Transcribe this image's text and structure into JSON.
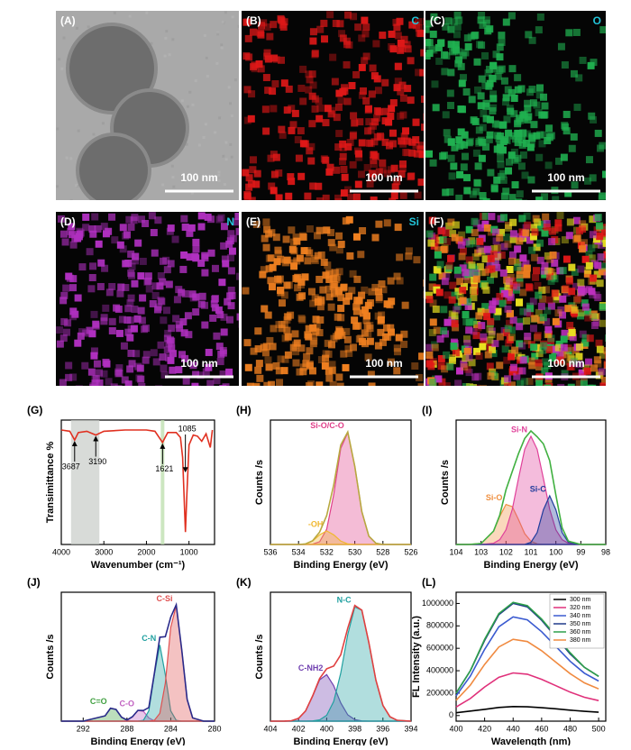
{
  "panels": [
    {
      "label": "(A)",
      "scale_bar": "100 nm"
    },
    {
      "label": "(B)",
      "element": "C",
      "scale_bar": "100 nm"
    },
    {
      "label": "(C)",
      "element": "O",
      "scale_bar": "100 nm"
    },
    {
      "label": "(D)",
      "element": "N",
      "scale_bar": "100 nm"
    },
    {
      "label": "(E)",
      "element": "Si",
      "scale_bar": "100 nm"
    },
    {
      "label": "(F)",
      "scale_bar": "100 nm"
    }
  ],
  "chart_data": [
    {
      "type": "line",
      "panel_label": "(G)",
      "x_label": "Wavenumber (cm⁻¹)",
      "y_label": "Transimittance %",
      "x": [
        4000,
        3800,
        3687,
        3600,
        3400,
        3190,
        3000,
        2500,
        2000,
        1800,
        1621,
        1500,
        1300,
        1200,
        1150,
        1085,
        1050,
        1000,
        900,
        800,
        700,
        600,
        500,
        450
      ],
      "series": [
        {
          "color": "#e03020",
          "values": [
            92,
            91,
            84,
            90,
            91,
            88,
            91,
            92,
            92,
            91,
            82,
            90,
            90,
            86,
            70,
            10,
            40,
            80,
            88,
            87,
            83,
            89,
            78,
            92
          ]
        }
      ],
      "xlim": [
        4000,
        400
      ],
      "xticks": [
        4000,
        3000,
        2000,
        1000
      ],
      "ylim": [
        0,
        100
      ],
      "annotations": [
        3687,
        3190,
        1621,
        1085
      ]
    },
    {
      "type": "peaks",
      "panel_label": "(H)",
      "x_label": "Binding Energy (eV)",
      "y_label": "Counts /s",
      "x": [
        536,
        535,
        534,
        533.5,
        533,
        532.5,
        532,
        531.5,
        531,
        530.5,
        530,
        529.5,
        529,
        528.5,
        528,
        527,
        526
      ],
      "series": [
        {
          "color": "#e0408a",
          "filled": true,
          "name": "Si-O/C-O",
          "values": [
            0,
            0,
            0,
            0,
            0.3,
            2.5,
            13.5,
            44,
            85,
            99,
            69,
            29,
            7.3,
            1.1,
            0,
            0,
            0
          ]
        },
        {
          "color": "#f0b830",
          "filled": true,
          "name": "-OH",
          "values": [
            0,
            0,
            0,
            0.5,
            3,
            8.5,
            12,
            8.5,
            3,
            0.5,
            0,
            0,
            0,
            0,
            0,
            0,
            0
          ]
        },
        {
          "color": "#b8a840",
          "filled": false,
          "values": [
            0,
            0,
            0,
            0.5,
            3.3,
            11,
            25.5,
            52.5,
            88,
            99.5,
            69,
            29,
            7.3,
            1.1,
            0,
            0,
            0
          ]
        }
      ],
      "xlim": [
        536,
        526
      ],
      "xticks": [
        536,
        534,
        532,
        530,
        528,
        526
      ],
      "ylim": [
        0,
        110
      ]
    },
    {
      "type": "peaks",
      "panel_label": "(I)",
      "x_label": "Binding Energy (eV)",
      "y_label": "Counts /s",
      "x": [
        104,
        103.5,
        103,
        102.5,
        102.25,
        102,
        101.75,
        101.5,
        101.25,
        101,
        100.75,
        100.5,
        100.25,
        100,
        99.75,
        99.5,
        99,
        98.5,
        98
      ],
      "series": [
        {
          "color": "#f09040",
          "filled": true,
          "name": "Si-O",
          "values": [
            0,
            0,
            0.9,
            12.3,
            26,
            37,
            35,
            23,
            10,
            3,
            0.6,
            0,
            0,
            0,
            0,
            0,
            0,
            0,
            0
          ]
        },
        {
          "color": "#e0409a",
          "filled": true,
          "name": "Si-N",
          "values": [
            0,
            0,
            0,
            1.1,
            4.4,
            13.5,
            32.5,
            61,
            88,
            100,
            88,
            61,
            32.5,
            13.5,
            4.4,
            1.1,
            0,
            0,
            0
          ]
        },
        {
          "color": "#203c9c",
          "filled": true,
          "name": "Si-C",
          "values": [
            0,
            0,
            0,
            0,
            0,
            0,
            0,
            0,
            0,
            2,
            11,
            32,
            45,
            32,
            11,
            2,
            0,
            0,
            0
          ]
        },
        {
          "color": "#40b040",
          "filled": false,
          "values": [
            0,
            0,
            0.9,
            12.3,
            27.1,
            50.5,
            67.5,
            84,
            98,
            105,
            99.6,
            93,
            77.5,
            45.5,
            15.4,
            3.1,
            0,
            0,
            0
          ]
        }
      ],
      "xlim": [
        104,
        98
      ],
      "xticks": [
        104,
        103,
        102,
        101,
        100,
        99,
        98
      ],
      "ylim": [
        0,
        115
      ]
    },
    {
      "type": "peaks",
      "panel_label": "(J)",
      "x_label": "Binding Energy (eV)",
      "y_label": "Counts /s",
      "x": [
        294,
        292,
        290,
        289.5,
        289,
        288.5,
        288,
        287.5,
        287,
        286.5,
        286,
        285.5,
        285,
        284.5,
        284,
        283.5,
        283,
        282.5,
        282,
        281,
        280
      ],
      "series": [
        {
          "color": "#40a040",
          "filled": true,
          "name": "C=O",
          "values": [
            0,
            0,
            4.5,
            11,
            10,
            3.4,
            0.4,
            0,
            0,
            0,
            0,
            0,
            0,
            0,
            0,
            0,
            0,
            0,
            0,
            0,
            0
          ]
        },
        {
          "color": "#c060c0",
          "filled": true,
          "name": "C-O",
          "values": [
            0,
            0,
            0,
            0,
            0,
            0,
            0.6,
            3.8,
            9.2,
            8.4,
            2.8,
            0.3,
            0,
            0,
            0,
            0,
            0,
            0,
            0,
            0,
            0
          ]
        },
        {
          "color": "#20a0a0",
          "filled": true,
          "name": "C-N",
          "values": [
            0,
            0,
            0,
            0,
            0,
            0,
            0,
            0,
            0,
            0.7,
            8.8,
            39.6,
            65,
            39.6,
            8.8,
            0.7,
            0,
            0,
            0,
            0,
            0
          ]
        },
        {
          "color": "#e05050",
          "filled": true,
          "name": "C-Si",
          "values": [
            0,
            0,
            0,
            0,
            0,
            0,
            0,
            0,
            0,
            0,
            0,
            0.7,
            6.6,
            32.5,
            80,
            98.6,
            61,
            18.6,
            2.8,
            0,
            0
          ]
        },
        {
          "color": "#2a2a8a",
          "filled": false,
          "values": [
            0,
            0,
            4.5,
            11,
            10,
            3.4,
            1,
            3.8,
            9.2,
            9.1,
            11.6,
            40.6,
            71.6,
            72.1,
            88.8,
            99.3,
            61,
            18.6,
            2.8,
            0,
            0
          ]
        }
      ],
      "xlim": [
        294,
        280
      ],
      "xticks": [
        292,
        288,
        284,
        280
      ],
      "ylim": [
        0,
        110
      ]
    },
    {
      "type": "peaks",
      "panel_label": "(K)",
      "x_label": "Binding Energy (eV)",
      "y_label": "Counts /s",
      "x": [
        404,
        403,
        402.5,
        402,
        401.5,
        401,
        400.5,
        400,
        399.5,
        399,
        398.5,
        398,
        397.5,
        397,
        396.5,
        396,
        395.5,
        395,
        394
      ],
      "series": [
        {
          "color": "#7040b0",
          "filled": true,
          "name": "C-NH2",
          "values": [
            0,
            0.1,
            0.4,
            2.4,
            8.7,
            21.3,
            35.3,
            39.7,
            30.2,
            15.6,
            5.4,
            1.3,
            0.2,
            0,
            0,
            0,
            0,
            0,
            0
          ]
        },
        {
          "color": "#20a0a0",
          "filled": true,
          "name": "N-C",
          "values": [
            0,
            0,
            0,
            0,
            0,
            0.2,
            1.1,
            5,
            16.8,
            41,
            74,
            97.5,
            94.6,
            67,
            35,
            13.5,
            3.8,
            0.8,
            0
          ]
        },
        {
          "color": "#e04040",
          "filled": false,
          "values": [
            0,
            0.1,
            0.4,
            2.4,
            8.7,
            21.5,
            36.4,
            44.7,
            47,
            56.6,
            79.4,
            98.8,
            94.8,
            67,
            35,
            13.5,
            3.8,
            0.8,
            0
          ]
        }
      ],
      "xlim": [
        404,
        394
      ],
      "xticks": [
        404,
        402,
        400,
        398,
        396,
        394
      ],
      "ylim": [
        0,
        110
      ]
    },
    {
      "type": "line",
      "panel_label": "(L)",
      "x_label": "Wavelength (nm)",
      "y_label": "FL Intensity (a.u.)",
      "legend": "upper right",
      "x": [
        400,
        410,
        420,
        430,
        440,
        450,
        460,
        470,
        480,
        490,
        500
      ],
      "series": [
        {
          "name": "300 nm",
          "color": "#000000",
          "values": [
            25000,
            40000,
            55000,
            72000,
            80000,
            78000,
            70000,
            60000,
            48000,
            38000,
            30000
          ]
        },
        {
          "name": "320 nm",
          "color": "#e0307a",
          "values": [
            76000,
            152000,
            255000,
            342000,
            380000,
            369000,
            323000,
            266000,
            209000,
            163000,
            133000
          ]
        },
        {
          "name": "340 nm",
          "color": "#3a5ad0",
          "values": [
            176000,
            352000,
            590000,
            792000,
            880000,
            854000,
            748000,
            616000,
            484000,
            378000,
            308000
          ]
        },
        {
          "name": "350 nm",
          "color": "#203a8a",
          "values": [
            200000,
            400000,
            670000,
            900000,
            1000000,
            970000,
            850000,
            700000,
            550000,
            430000,
            350000
          ]
        },
        {
          "name": "360 nm",
          "color": "#2ea04a",
          "values": [
            200000,
            400000,
            680000,
            910000,
            1010000,
            980000,
            860000,
            710000,
            560000,
            430000,
            350000
          ]
        },
        {
          "name": "380 nm",
          "color": "#f08a40",
          "values": [
            136000,
            272000,
            456000,
            612000,
            680000,
            660000,
            578000,
            476000,
            374000,
            292000,
            238000
          ]
        }
      ],
      "xlim": [
        400,
        505
      ],
      "xticks": [
        400,
        420,
        440,
        460,
        480,
        500
      ],
      "ylim": [
        -50000,
        1100000
      ],
      "yticks": [
        0,
        200000,
        400000,
        600000,
        800000,
        1000000
      ]
    }
  ]
}
